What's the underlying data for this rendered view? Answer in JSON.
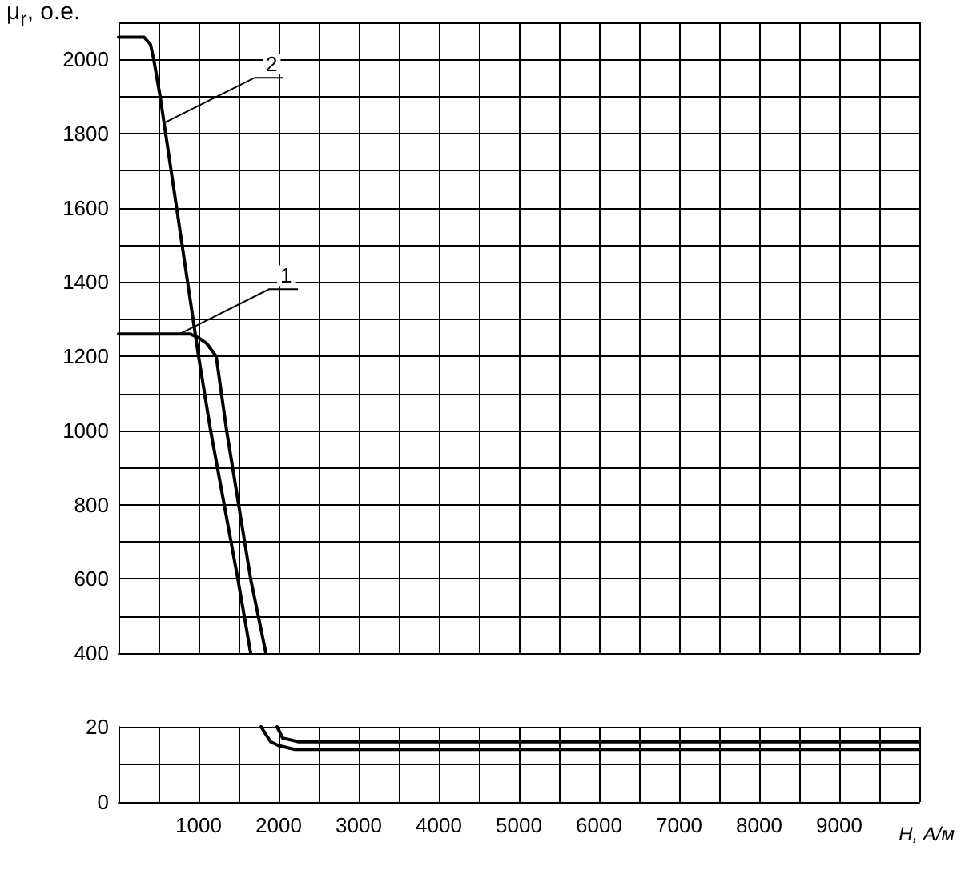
{
  "chart_data": [
    {
      "type": "line",
      "ylabel": "μ$_{r}$, о.е.",
      "tick_labels": "y",
      "grid": true,
      "marker": "none",
      "line_style": "solid",
      "xlim": [
        0,
        10000
      ],
      "xticks": [
        {
          "value": 0,
          "label": null
        },
        {
          "value": 500,
          "label": null
        },
        {
          "value": 1000,
          "label": null
        },
        {
          "value": 1500,
          "label": null
        },
        {
          "value": 2000,
          "label": null
        },
        {
          "value": 2500,
          "label": null
        },
        {
          "value": 3000,
          "label": null
        },
        {
          "value": 3500,
          "label": null
        },
        {
          "value": 4000,
          "label": null
        },
        {
          "value": 4500,
          "label": null
        },
        {
          "value": 5000,
          "label": null
        },
        {
          "value": 5500,
          "label": null
        },
        {
          "value": 6000,
          "label": null
        },
        {
          "value": 6500,
          "label": null
        },
        {
          "value": 7000,
          "label": null
        },
        {
          "value": 7500,
          "label": null
        },
        {
          "value": 8000,
          "label": null
        },
        {
          "value": 8500,
          "label": null
        },
        {
          "value": 9000,
          "label": null
        },
        {
          "value": 9500,
          "label": null
        },
        {
          "value": 10000,
          "label": null
        }
      ],
      "ylim": [
        400,
        2100
      ],
      "yticks": [
        400,
        {
          "value": 500,
          "label": null
        },
        600,
        {
          "value": 700,
          "label": null
        },
        800,
        {
          "value": 900,
          "label": null
        },
        1000,
        {
          "value": 1100,
          "label": null
        },
        1200,
        {
          "value": 1300,
          "label": null
        },
        1400,
        {
          "value": 1500,
          "label": null
        },
        1600,
        {
          "value": 1700,
          "label": null
        },
        1800,
        {
          "value": 1900,
          "label": null
        },
        2000,
        {
          "value": 2100,
          "label": null
        }
      ],
      "series": [
        {
          "color": "#000000",
          "x": [
            0,
            900,
            1000,
            1100,
            1220,
            1350,
            1650,
            1840
          ],
          "values": [
            1260,
            1260,
            1250,
            1235,
            1200,
            1000,
            600,
            400
          ]
        },
        {
          "color": "#000000",
          "x": [
            0,
            320,
            400,
            440,
            520,
            1000,
            1150,
            1490,
            1650
          ],
          "values": [
            2060,
            2060,
            2040,
            2000,
            1900,
            1200,
            1000,
            600,
            400
          ]
        }
      ],
      "annotations": [
        {
          "text": "1",
          "x": 760,
          "y": 1260
        },
        {
          "text": "2",
          "x": 580,
          "y": 1830
        }
      ]
    },
    {
      "type": "line",
      "xlabel": "H, А/м",
      "grid": true,
      "marker": "none",
      "line_style": "solid",
      "xlim": [
        0,
        10000
      ],
      "xticks": [
        {
          "value": 0,
          "label": null
        },
        {
          "value": 500,
          "label": null
        },
        1000,
        {
          "value": 1500,
          "label": null
        },
        2000,
        {
          "value": 2500,
          "label": null
        },
        3000,
        {
          "value": 3500,
          "label": null
        },
        4000,
        {
          "value": 4500,
          "label": null
        },
        5000,
        {
          "value": 5500,
          "label": null
        },
        6000,
        {
          "value": 6500,
          "label": null
        },
        7000,
        {
          "value": 7500,
          "label": null
        },
        8000,
        {
          "value": 8500,
          "label": null
        },
        9000,
        {
          "value": 9500,
          "label": null
        },
        {
          "value": 10000,
          "label": null
        }
      ],
      "ylim": [
        0,
        20
      ],
      "yticks": [
        0,
        {
          "value": 10,
          "label": null
        },
        20
      ],
      "series": [
        {
          "color": "#000000",
          "x": [
            1980,
            2050,
            2250,
            10000
          ],
          "values": [
            20,
            17,
            16,
            16
          ]
        },
        {
          "color": "#000000",
          "x": [
            1780,
            1900,
            2000,
            2200,
            10000
          ],
          "values": [
            20,
            16,
            15,
            14,
            14
          ]
        }
      ]
    }
  ]
}
